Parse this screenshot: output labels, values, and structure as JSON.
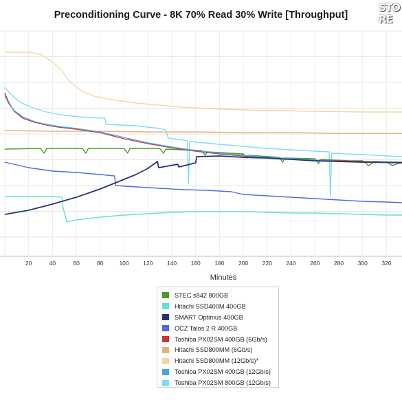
{
  "chart_data": {
    "type": "line",
    "title": "Preconditioning Curve - 8K 70% Read 30% Write [Throughput]",
    "xlabel": "Minutes",
    "ylabel": "",
    "xlim": [
      -4,
      333
    ],
    "x_ticks": [
      20,
      40,
      60,
      80,
      100,
      120,
      140,
      160,
      180,
      200,
      220,
      240,
      260,
      280,
      300,
      320
    ],
    "grid": true,
    "legend_position": "bottom-center",
    "series": [
      {
        "name": "STEC s842 800GB",
        "color": "#4a9a2a",
        "points": [
          [
            0,
            217
          ],
          [
            30,
            216
          ],
          [
            33,
            223
          ],
          [
            35,
            216
          ],
          [
            65,
            216
          ],
          [
            68,
            223
          ],
          [
            70,
            216
          ],
          [
            100,
            216
          ],
          [
            103,
            223
          ],
          [
            105,
            216
          ],
          [
            130,
            216
          ],
          [
            133,
            223
          ],
          [
            135,
            217
          ],
          [
            165,
            219
          ],
          [
            168,
            226
          ],
          [
            170,
            221
          ],
          [
            200,
            224
          ],
          [
            203,
            230
          ],
          [
            205,
            226
          ],
          [
            230,
            229
          ],
          [
            233,
            236
          ],
          [
            235,
            230
          ],
          [
            260,
            231
          ],
          [
            263,
            238
          ],
          [
            265,
            232
          ],
          [
            290,
            234
          ],
          [
            300,
            234
          ],
          [
            305,
            241
          ],
          [
            310,
            235
          ],
          [
            320,
            236
          ],
          [
            325,
            241
          ],
          [
            333,
            236
          ]
        ]
      },
      {
        "name": "Hitachi SSD400M 400GB",
        "color": "#5fe3cf",
        "points": [
          [
            0,
            286
          ],
          [
            40,
            286
          ],
          [
            48,
            287
          ],
          [
            49,
            303
          ],
          [
            52,
            323
          ],
          [
            60,
            320
          ],
          [
            80,
            316
          ],
          [
            100,
            313
          ],
          [
            120,
            311
          ],
          [
            140,
            309
          ],
          [
            160,
            308
          ],
          [
            180,
            308
          ],
          [
            200,
            308
          ],
          [
            220,
            309
          ],
          [
            240,
            310
          ],
          [
            260,
            310
          ],
          [
            280,
            311
          ],
          [
            300,
            312
          ],
          [
            320,
            313
          ],
          [
            333,
            313
          ]
        ]
      },
      {
        "name": "SMART Optimus 400GB",
        "color": "#233579",
        "points": [
          [
            0,
            312
          ],
          [
            20,
            306
          ],
          [
            40,
            297
          ],
          [
            60,
            287
          ],
          [
            80,
            275
          ],
          [
            100,
            261
          ],
          [
            110,
            254
          ],
          [
            120,
            245
          ],
          [
            128,
            235
          ],
          [
            129,
            244
          ],
          [
            145,
            239
          ],
          [
            146,
            243
          ],
          [
            160,
            237
          ],
          [
            161,
            228
          ],
          [
            180,
            227
          ],
          [
            200,
            229
          ],
          [
            220,
            230
          ],
          [
            240,
            232
          ],
          [
            260,
            234
          ],
          [
            280,
            235
          ],
          [
            300,
            236
          ],
          [
            320,
            236
          ],
          [
            333,
            237
          ]
        ]
      },
      {
        "name": "OCZ Talos 2 R 400GB",
        "color": "#5269e0",
        "points": [
          [
            0,
            236
          ],
          [
            20,
            244
          ],
          [
            40,
            249
          ],
          [
            60,
            251
          ],
          [
            80,
            254
          ],
          [
            92,
            256
          ],
          [
            93,
            270
          ],
          [
            110,
            272
          ],
          [
            130,
            274
          ],
          [
            150,
            276
          ],
          [
            170,
            277
          ],
          [
            190,
            279
          ],
          [
            200,
            283
          ],
          [
            220,
            285
          ],
          [
            240,
            287
          ],
          [
            260,
            289
          ],
          [
            280,
            291
          ],
          [
            300,
            293
          ],
          [
            320,
            294
          ],
          [
            333,
            295
          ]
        ]
      },
      {
        "name": "Toshiba PX02SM 400GB (6Gb/s)",
        "color": "#c93636",
        "points": [
          [
            0,
            135
          ],
          [
            3,
            148
          ],
          [
            8,
            162
          ],
          [
            15,
            172
          ],
          [
            25,
            178
          ],
          [
            35,
            182
          ],
          [
            45,
            185
          ],
          [
            60,
            188
          ],
          [
            80,
            193
          ],
          [
            100,
            202
          ],
          [
            120,
            209
          ],
          [
            140,
            215
          ],
          [
            160,
            220
          ],
          [
            180,
            224
          ],
          [
            200,
            227
          ],
          [
            220,
            229
          ],
          [
            240,
            231
          ],
          [
            260,
            233
          ],
          [
            280,
            234
          ],
          [
            300,
            235
          ],
          [
            320,
            236
          ],
          [
            333,
            236
          ]
        ]
      },
      {
        "name": "Hitachi SSD800MM (6Gb/s)",
        "color": "#e6b27b",
        "points": [
          [
            0,
            190
          ],
          [
            40,
            191
          ],
          [
            80,
            191
          ],
          [
            120,
            192
          ],
          [
            160,
            192
          ],
          [
            200,
            193
          ],
          [
            240,
            193
          ],
          [
            280,
            194
          ],
          [
            333,
            194
          ]
        ]
      },
      {
        "name": "Hitachi SSD800MM (12Gb/s)*",
        "color": "#f6d5a6",
        "points": [
          [
            0,
            76
          ],
          [
            20,
            76
          ],
          [
            30,
            79
          ],
          [
            40,
            90
          ],
          [
            48,
            103
          ],
          [
            55,
            120
          ],
          [
            65,
            133
          ],
          [
            75,
            140
          ],
          [
            90,
            145
          ],
          [
            110,
            150
          ],
          [
            130,
            153
          ],
          [
            150,
            156
          ],
          [
            170,
            158
          ],
          [
            200,
            160
          ],
          [
            230,
            161
          ],
          [
            260,
            162
          ],
          [
            300,
            163
          ],
          [
            333,
            163
          ]
        ]
      },
      {
        "name": "Toshiba PX02SM 400GB (12Gb/s)",
        "color": "#46a9e0",
        "points": [
          [
            0,
            139
          ],
          [
            3,
            150
          ],
          [
            8,
            161
          ],
          [
            15,
            170
          ],
          [
            25,
            177
          ],
          [
            35,
            181
          ],
          [
            45,
            184
          ],
          [
            60,
            187
          ],
          [
            80,
            192
          ],
          [
            100,
            200
          ],
          [
            120,
            208
          ],
          [
            140,
            214
          ],
          [
            160,
            219
          ],
          [
            180,
            223
          ],
          [
            200,
            226
          ],
          [
            220,
            229
          ],
          [
            240,
            231
          ],
          [
            260,
            233
          ],
          [
            280,
            235
          ],
          [
            300,
            236
          ],
          [
            320,
            237
          ],
          [
            333,
            237
          ]
        ]
      },
      {
        "name": "Toshiba PX02SM 800GB (12Gb/s)",
        "color": "#7fdcf4",
        "points": [
          [
            0,
            127
          ],
          [
            5,
            137
          ],
          [
            12,
            148
          ],
          [
            22,
            156
          ],
          [
            35,
            163
          ],
          [
            50,
            168
          ],
          [
            70,
            171
          ],
          [
            84,
            172
          ],
          [
            85,
            181
          ],
          [
            110,
            183
          ],
          [
            130,
            187
          ],
          [
            135,
            189
          ],
          [
            137,
            201
          ],
          [
            150,
            204
          ],
          [
            153,
            205
          ],
          [
            154,
            268
          ],
          [
            155,
            206
          ],
          [
            180,
            210
          ],
          [
            200,
            213
          ],
          [
            220,
            216
          ],
          [
            240,
            218
          ],
          [
            260,
            220
          ],
          [
            272,
            221
          ],
          [
            273,
            285
          ],
          [
            274,
            223
          ],
          [
            300,
            225
          ],
          [
            333,
            228
          ]
        ]
      }
    ]
  }
}
